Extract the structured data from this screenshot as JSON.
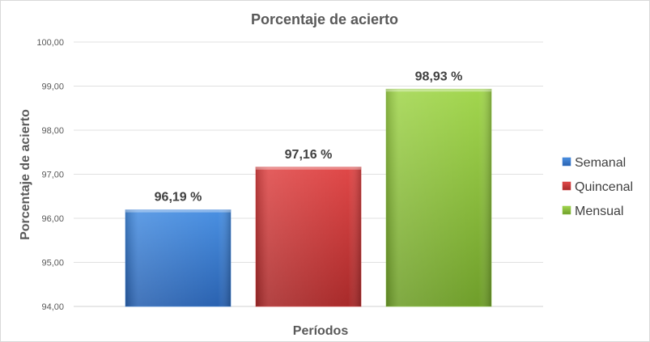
{
  "chart_data": {
    "type": "bar",
    "title": "Porcentaje de acierto",
    "xlabel": "Períodos",
    "ylabel": "Porcentaje de acierto",
    "ylim": [
      94,
      100
    ],
    "yticks": [
      "94,00",
      "95,00",
      "96,00",
      "97,00",
      "98,00",
      "99,00",
      "100,00"
    ],
    "grid": true,
    "legend_position": "right",
    "series": [
      {
        "name": "Semanal",
        "value": 96.19,
        "label": "96,19 %",
        "color": "#3a7fd5"
      },
      {
        "name": "Quincenal",
        "value": 97.16,
        "label": "97,16 %",
        "color": "#d23a3a"
      },
      {
        "name": "Mensual",
        "value": 98.93,
        "label": "98,93 %",
        "color": "#8cc63f"
      }
    ]
  }
}
